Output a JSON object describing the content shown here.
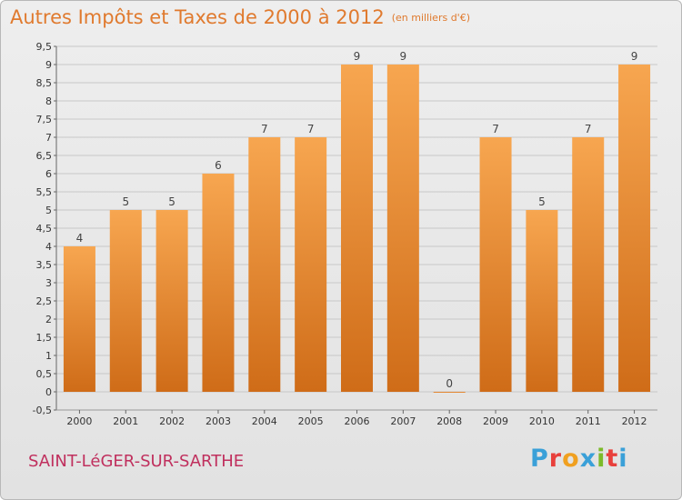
{
  "title": "Autres Impôts et Taxes de 2000 à 2012",
  "unit_note": "(en milliers d'€)",
  "commune": "SAINT-LéGER-SUR-SARTHE",
  "logo": {
    "text": "Proxiti",
    "letter_colors": [
      "#3aa0d8",
      "#e8403c",
      "#f0a020",
      "#3aa0d8",
      "#7cba2a",
      "#e8403c",
      "#3aa0d8"
    ]
  },
  "colors": {
    "bar_light": "#f7a650",
    "bar_dark": "#cf6c18",
    "title": "#e07a2e",
    "commune": "#c0305e"
  },
  "chart_data": {
    "type": "bar",
    "title": "Autres Impôts et Taxes de 2000 à 2012",
    "subtitle": "(en milliers d'€)",
    "categories": [
      "2000",
      "2001",
      "2002",
      "2003",
      "2004",
      "2005",
      "2006",
      "2007",
      "2008",
      "2009",
      "2010",
      "2011",
      "2012"
    ],
    "values": [
      4,
      5,
      5,
      6,
      7,
      7,
      9,
      9,
      0,
      7,
      5,
      7,
      9
    ],
    "data_labels": [
      "4",
      "5",
      "5",
      "6",
      "7",
      "7",
      "9",
      "9",
      "0",
      "7",
      "5",
      "7",
      "9"
    ],
    "ylim": [
      -0.5,
      9.5
    ],
    "yticks": [
      "-0,5",
      "0",
      "0,5",
      "1",
      "1,5",
      "2",
      "2,5",
      "3",
      "3,5",
      "4",
      "4,5",
      "5",
      "5,5",
      "6",
      "6,5",
      "7",
      "7,5",
      "8",
      "8,5",
      "9",
      "9,5"
    ],
    "grid": true,
    "legend": "none"
  }
}
